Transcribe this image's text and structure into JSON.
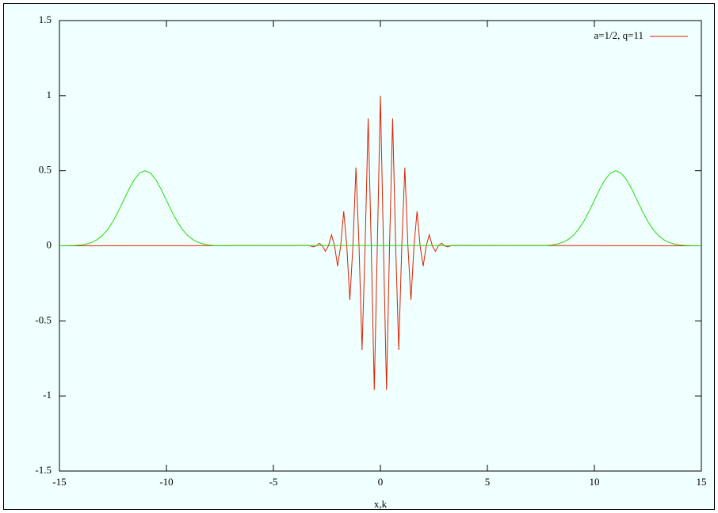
{
  "chart_data": {
    "type": "line",
    "xlabel": "x,k",
    "xlim": [
      -15,
      15
    ],
    "xticks": [
      -15,
      -10,
      -5,
      0,
      5,
      10,
      15
    ],
    "ylim": [
      -1.5,
      1.5
    ],
    "yticks": [
      -1.5,
      -1,
      -0.5,
      0,
      0.5,
      1,
      1.5
    ],
    "grid": false,
    "legend": "top-right",
    "series": [
      {
        "name": "a=1/2, q=11",
        "color": "#dd2200",
        "x": [
          -15,
          -3.427,
          -3.284,
          -3.142,
          -2.999,
          -2.856,
          -2.713,
          -2.57,
          -2.428,
          -2.285,
          -2.142,
          -1.999,
          -1.856,
          -1.714,
          -1.571,
          -1.428,
          -1.285,
          -1.142,
          -1.0,
          -0.857,
          -0.714,
          -0.571,
          -0.428,
          -0.286,
          -0.143,
          0,
          0.143,
          0.286,
          0.428,
          0.571,
          0.714,
          0.857,
          1.0,
          1.142,
          1.285,
          1.428,
          1.571,
          1.714,
          1.856,
          1.999,
          2.142,
          2.285,
          2.428,
          2.57,
          2.713,
          2.856,
          2.999,
          3.142,
          3.284,
          3.427,
          15
        ],
        "values": [
          0,
          0.0028,
          0,
          -0.0072,
          0,
          0.0169,
          0,
          -0.0368,
          0,
          0.0735,
          0,
          -0.136,
          0,
          0.23,
          0,
          -0.361,
          0,
          0.521,
          0,
          -0.693,
          0,
          0.849,
          0,
          -0.96,
          0,
          1,
          0,
          -0.96,
          0,
          0.849,
          0,
          -0.693,
          0,
          0.521,
          0,
          -0.361,
          0,
          0.23,
          0,
          -0.136,
          0,
          0.0735,
          0,
          -0.0368,
          0,
          0.0169,
          0,
          -0.0072,
          0,
          0.0028,
          0
        ]
      },
      {
        "color": "#22dd00",
        "x": [
          -15,
          -14.5,
          -14.25,
          -14,
          -13.75,
          -13.5,
          -13.25,
          -13,
          -12.75,
          -12.5,
          -12.25,
          -12,
          -11.75,
          -11.5,
          -11.25,
          -11,
          -10.75,
          -10.5,
          -10.25,
          -10,
          -9.75,
          -9.5,
          -9.25,
          -9,
          -8.75,
          -8.5,
          -8.25,
          -8,
          -7.75,
          -7.5,
          7.5,
          7.75,
          8,
          8.25,
          8.5,
          8.75,
          9,
          9.25,
          9.5,
          9.75,
          10,
          10.25,
          10.5,
          10.75,
          11,
          11.25,
          11.5,
          11.75,
          12,
          12.25,
          12.5,
          12.75,
          13,
          13.25,
          13.5,
          13.75,
          14,
          14.25,
          14.5,
          15
        ],
        "values": [
          0,
          0.0011,
          0.0025,
          0.0056,
          0.0114,
          0.022,
          0.0398,
          0.0677,
          0.108,
          0.162,
          0.229,
          0.303,
          0.377,
          0.441,
          0.485,
          0.5,
          0.485,
          0.441,
          0.377,
          0.303,
          0.229,
          0.162,
          0.108,
          0.0677,
          0.0398,
          0.022,
          0.0114,
          0.0056,
          0.0025,
          0.0011,
          0.0011,
          0.0025,
          0.0056,
          0.0114,
          0.022,
          0.0398,
          0.0677,
          0.108,
          0.162,
          0.229,
          0.303,
          0.377,
          0.441,
          0.485,
          0.5,
          0.485,
          0.441,
          0.377,
          0.303,
          0.229,
          0.162,
          0.108,
          0.0677,
          0.0398,
          0.022,
          0.0114,
          0.0056,
          0.0025,
          0.0011,
          0
        ]
      }
    ]
  }
}
